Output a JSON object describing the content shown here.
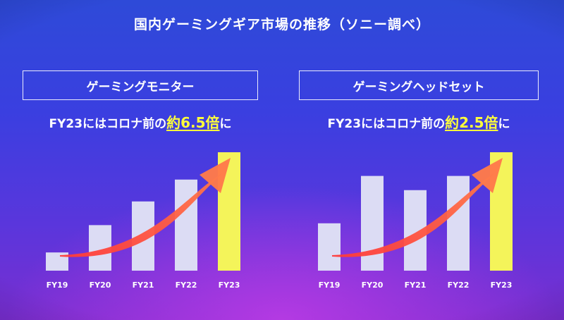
{
  "title": "国内ゲーミングギア市場の推移（ソニー調べ）",
  "colors": {
    "bar_normal": "#dcdcf4",
    "bar_highlight": "#f4f45a",
    "arrow_start": "#ff3a3a",
    "arrow_end": "#ff7a4a",
    "highlight_text": "#ffff3a"
  },
  "panels": [
    {
      "header": "ゲーミングモニター",
      "headline": {
        "prefix": "FY23にはコロナ前の",
        "highlight": "約6.5倍",
        "suffix": "に"
      }
    },
    {
      "header": "ゲーミングヘッドセット",
      "headline": {
        "prefix": "FY23にはコロナ前の",
        "highlight": "約2.5倍",
        "suffix": "に"
      }
    }
  ],
  "chart_data": [
    {
      "type": "bar",
      "title": "ゲーミングモニター",
      "categories": [
        "FY19",
        "FY20",
        "FY21",
        "FY22",
        "FY23"
      ],
      "values": [
        1.0,
        2.5,
        3.8,
        5.0,
        6.5
      ],
      "highlight_index": 4,
      "ylim": [
        0,
        6.5
      ],
      "grid": false,
      "annotation": "upward-trend-arrow"
    },
    {
      "type": "bar",
      "title": "ゲーミングヘッドセット",
      "categories": [
        "FY19",
        "FY20",
        "FY21",
        "FY22",
        "FY23"
      ],
      "values": [
        1.0,
        2.0,
        1.7,
        2.0,
        2.5
      ],
      "highlight_index": 4,
      "ylim": [
        0,
        2.5
      ],
      "grid": false,
      "annotation": "upward-trend-arrow"
    }
  ]
}
